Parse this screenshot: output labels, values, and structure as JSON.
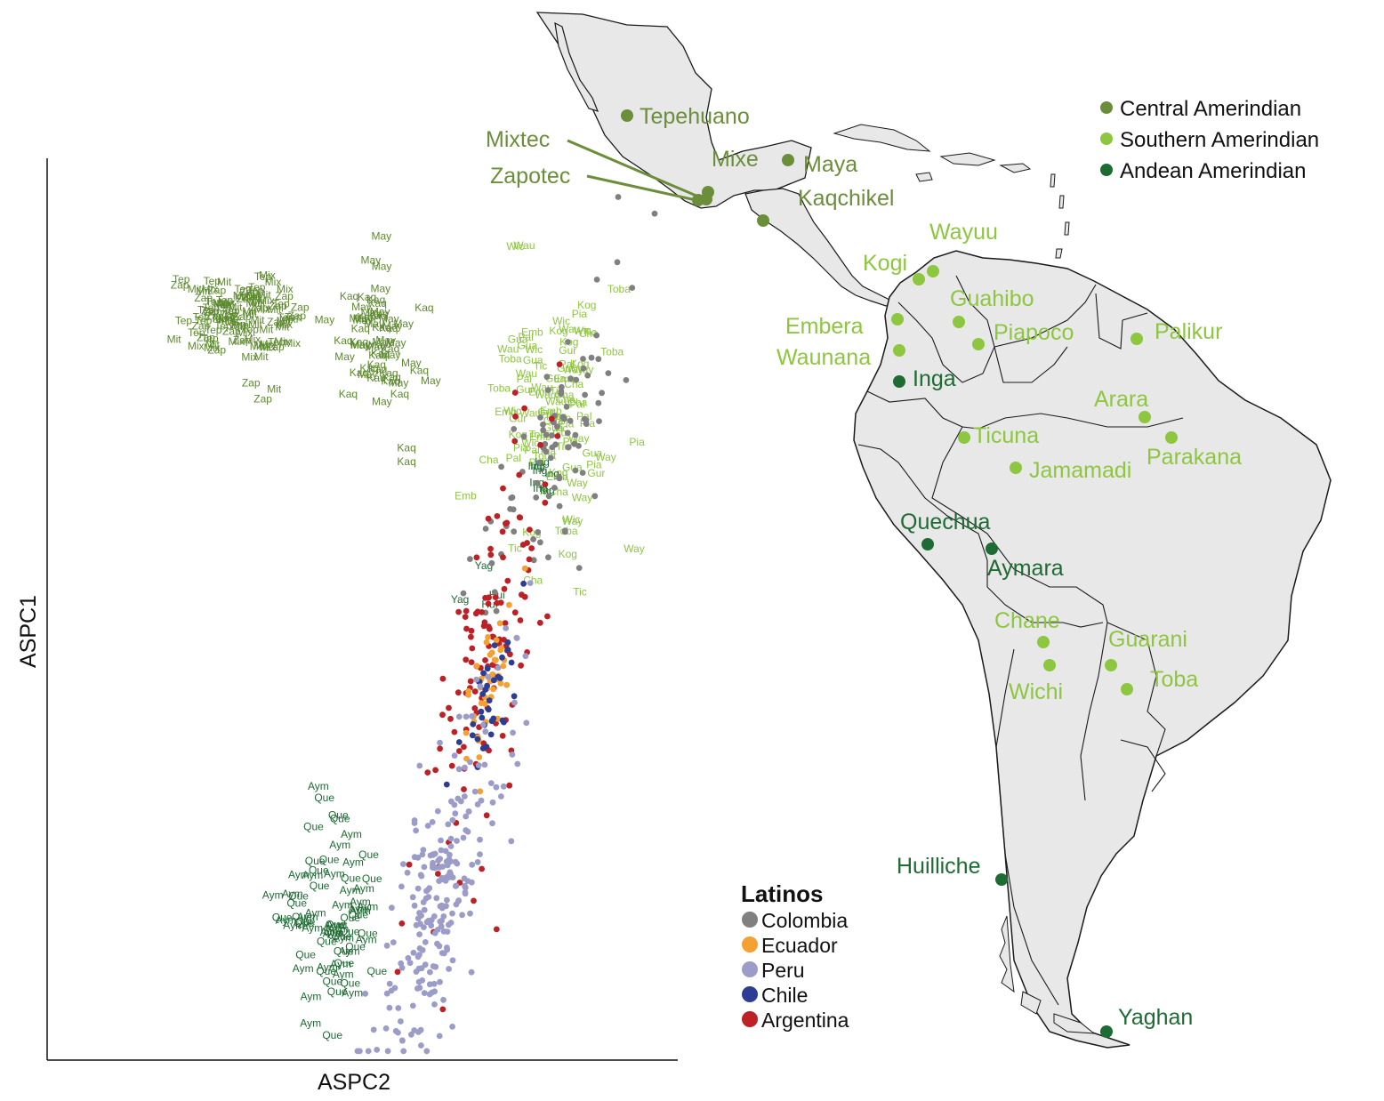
{
  "chart_data": [
    {
      "type": "scatter",
      "title": "",
      "xlabel": "ASPC2",
      "ylabel": "ASPC1",
      "grid": false,
      "xlim": [
        0,
        100
      ],
      "ylim": [
        0,
        100
      ],
      "legend": {
        "title": "Latinos",
        "placement": "bottom-right",
        "entries": [
          {
            "name": "Colombia",
            "color": "#808080"
          },
          {
            "name": "Ecuador",
            "color": "#f5a033"
          },
          {
            "name": "Peru",
            "color": "#9b9cc8"
          },
          {
            "name": "Chile",
            "color": "#2e3d94"
          },
          {
            "name": "Argentina",
            "color": "#bd2126"
          }
        ]
      },
      "point_series": [
        {
          "name": "Colombia",
          "color": "#808080",
          "count": 90,
          "cx": 80,
          "cy": 69,
          "sx": 7,
          "sy": 9
        },
        {
          "name": "Argentina",
          "color": "#bd2126",
          "count": 130,
          "cx": 70,
          "cy": 45,
          "sx": 6,
          "sy": 13
        },
        {
          "name": "Ecuador",
          "color": "#f5a033",
          "count": 45,
          "cx": 70.5,
          "cy": 43,
          "sx": 3.5,
          "sy": 5
        },
        {
          "name": "Chile",
          "color": "#2e3d94",
          "count": 35,
          "cx": 70,
          "cy": 38,
          "sx": 3.5,
          "sy": 6
        },
        {
          "name": "Peru",
          "color": "#9b9cc8",
          "count": 230,
          "cx": 63,
          "cy": 20,
          "sx": 7,
          "sy": 11
        }
      ],
      "label_groups": [
        {
          "color": "#5d8a2e",
          "count": 105,
          "cx": 30,
          "cy": 82,
          "sx": 4.5,
          "sy": 2.5,
          "labels": [
            "Tep",
            "Zap",
            "Mix",
            "Mit"
          ]
        },
        {
          "color": "#5d8a2e",
          "count": 55,
          "cx": 52,
          "cy": 79,
          "sx": 3,
          "sy": 3,
          "labels": [
            "May",
            "Kaq"
          ]
        },
        {
          "color": "#8dc63f",
          "count": 95,
          "cx": 81,
          "cy": 72,
          "sx": 5,
          "sy": 7,
          "labels": [
            "Way",
            "Kog",
            "Emb",
            "Wau",
            "Tic",
            "Pia",
            "Wic",
            "Pal",
            "Gua",
            "Cha",
            "Toba",
            "Gur"
          ]
        },
        {
          "color": "#1e6b33",
          "count": 8,
          "cx": 78.5,
          "cy": 66,
          "sx": 1.2,
          "sy": 2,
          "labels": [
            "Ing"
          ]
        },
        {
          "color": "#1e6b33",
          "count": 4,
          "cx": 70,
          "cy": 52,
          "sx": 1.5,
          "sy": 3,
          "labels": [
            "Yag",
            "Hui"
          ]
        },
        {
          "color": "#1e6b33",
          "count": 70,
          "cx": 45,
          "cy": 15,
          "sx": 3.5,
          "sy": 5,
          "labels": [
            "Que",
            "Aym"
          ]
        }
      ],
      "fixed_labels": [
        {
          "text": "May",
          "x": 53,
          "y": 91,
          "color": "#5d8a2e"
        },
        {
          "text": "Aym",
          "x": 43,
          "y": 30,
          "color": "#1e6b33"
        },
        {
          "text": "Kaq",
          "x": 57,
          "y": 67.5,
          "color": "#5d8a2e"
        },
        {
          "text": "Kaq",
          "x": 57,
          "y": 66,
          "color": "#5d8a2e"
        },
        {
          "text": "Mit",
          "x": 36,
          "y": 74,
          "color": "#5d8a2e"
        }
      ]
    },
    {
      "type": "map",
      "legend": {
        "placement": "top-right",
        "entries": [
          {
            "name": "Central Amerindian",
            "color": "#6b8e3a"
          },
          {
            "name": "Southern Amerindian",
            "color": "#8dc63f"
          },
          {
            "name": "Andean Amerindian",
            "color": "#1e6b33"
          }
        ]
      },
      "populations": [
        {
          "name": "Tepehuano",
          "group": "Central Amerindian"
        },
        {
          "name": "Mixtec",
          "group": "Central Amerindian"
        },
        {
          "name": "Zapotec",
          "group": "Central Amerindian"
        },
        {
          "name": "Mixe",
          "group": "Central Amerindian"
        },
        {
          "name": "Maya",
          "group": "Central Amerindian"
        },
        {
          "name": "Kaqchikel",
          "group": "Central Amerindian"
        },
        {
          "name": "Wayuu",
          "group": "Southern Amerindian"
        },
        {
          "name": "Kogi",
          "group": "Southern Amerindian"
        },
        {
          "name": "Guahibo",
          "group": "Southern Amerindian"
        },
        {
          "name": "Embera",
          "group": "Southern Amerindian"
        },
        {
          "name": "Piapoco",
          "group": "Southern Amerindian"
        },
        {
          "name": "Palikur",
          "group": "Southern Amerindian"
        },
        {
          "name": "Waunana",
          "group": "Southern Amerindian"
        },
        {
          "name": "Inga",
          "group": "Andean Amerindian"
        },
        {
          "name": "Arara",
          "group": "Southern Amerindian"
        },
        {
          "name": "Ticuna",
          "group": "Southern Amerindian"
        },
        {
          "name": "Parakana",
          "group": "Southern Amerindian"
        },
        {
          "name": "Jamamadi",
          "group": "Southern Amerindian"
        },
        {
          "name": "Quechua",
          "group": "Andean Amerindian"
        },
        {
          "name": "Aymara",
          "group": "Andean Amerindian"
        },
        {
          "name": "Chane",
          "group": "Southern Amerindian"
        },
        {
          "name": "Guarani",
          "group": "Southern Amerindian"
        },
        {
          "name": "Wichi",
          "group": "Southern Amerindian"
        },
        {
          "name": "Toba",
          "group": "Southern Amerindian"
        },
        {
          "name": "Huilliche",
          "group": "Andean Amerindian"
        },
        {
          "name": "Yaghan",
          "group": "Andean Amerindian"
        }
      ]
    }
  ]
}
